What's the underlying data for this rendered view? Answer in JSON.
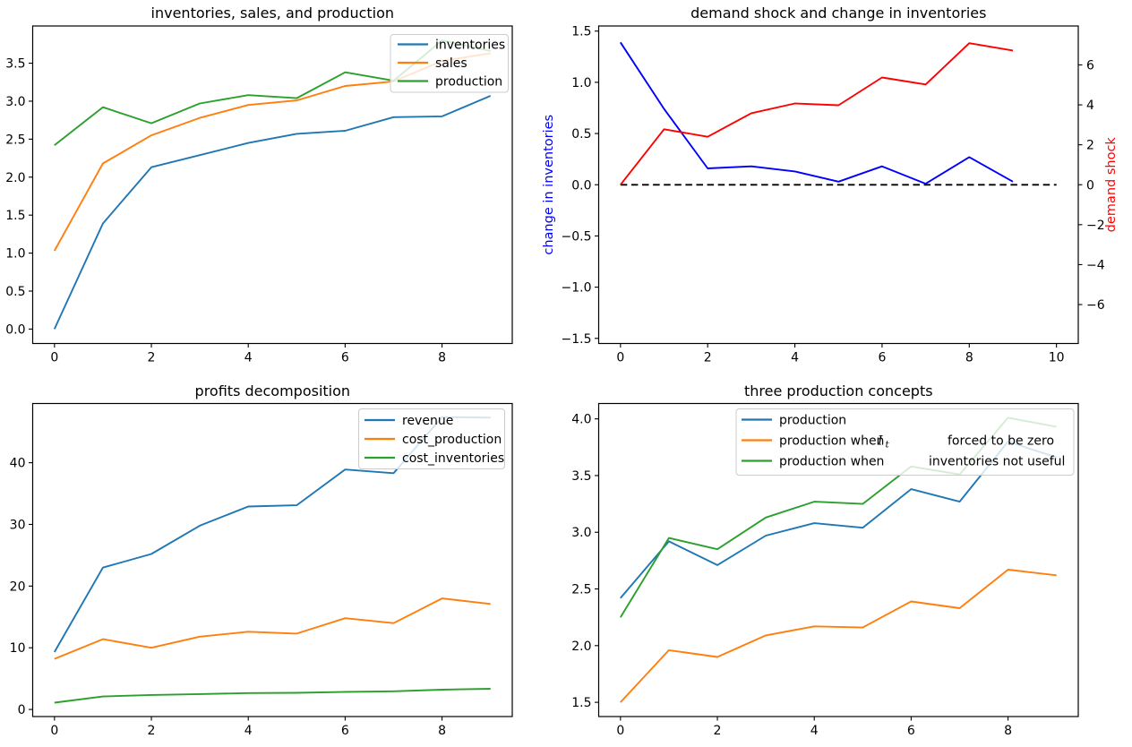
{
  "figure": {
    "background": "#ffffff"
  },
  "colors": {
    "mpl_blue": "#1f77b4",
    "mpl_orange": "#ff7f0e",
    "mpl_green": "#2ca02c",
    "pure_blue": "#0000ff",
    "pure_red": "#ff0000",
    "black": "#000000",
    "legend_border": "#cccccc"
  },
  "chart_data": [
    {
      "id": "inventories-sales-production",
      "type": "line",
      "title": "inventories, sales, and production",
      "x": [
        0,
        1,
        2,
        3,
        4,
        5,
        6,
        7,
        8,
        9
      ],
      "xlim": [
        -0.45,
        9.45
      ],
      "ylim": [
        -0.19,
        3.99
      ],
      "grid": false,
      "legend_position": "upper right",
      "xticks": {
        "values": [
          0,
          2,
          4,
          6,
          8
        ],
        "labels": [
          "0",
          "2",
          "4",
          "6",
          "8"
        ]
      },
      "yticks": {
        "values": [
          0,
          0.5,
          1,
          1.5,
          2,
          2.5,
          3,
          3.5
        ],
        "labels": [
          "0.0",
          "0.5",
          "1.0",
          "1.5",
          "2.0",
          "2.5",
          "3.0",
          "3.5"
        ]
      },
      "legend": [
        "inventories",
        "sales",
        "production"
      ],
      "series": [
        {
          "name": "inventories",
          "color": "#1f77b4",
          "values": [
            0.0,
            1.39,
            2.13,
            2.29,
            2.45,
            2.57,
            2.61,
            2.79,
            2.8,
            3.07
          ]
        },
        {
          "name": "sales",
          "color": "#ff7f0e",
          "values": [
            1.03,
            2.18,
            2.55,
            2.78,
            2.95,
            3.01,
            3.2,
            3.26,
            3.53,
            3.63
          ]
        },
        {
          "name": "production",
          "color": "#2ca02c",
          "values": [
            2.42,
            2.92,
            2.71,
            2.97,
            3.08,
            3.04,
            3.38,
            3.27,
            3.8,
            3.66
          ]
        }
      ]
    },
    {
      "id": "demand-shock-and-change-in-inventories",
      "type": "line",
      "title": "demand shock and change in inventories",
      "x": [
        0,
        1,
        2,
        3,
        4,
        5,
        6,
        7,
        8,
        9
      ],
      "xlim": [
        -0.5,
        10.5
      ],
      "ylim_left": [
        -1.55,
        1.55
      ],
      "ylim_right": [
        -7.95,
        7.95
      ],
      "grid": false,
      "ylabel_left": {
        "text": "change in inventories",
        "color": "#0000ff"
      },
      "ylabel_right": {
        "text": "demand shock",
        "color": "#ff0000"
      },
      "xticks": {
        "values": [
          0,
          2,
          4,
          6,
          8,
          10
        ],
        "labels": [
          "0",
          "2",
          "4",
          "6",
          "8",
          "10"
        ]
      },
      "yticks_left": {
        "values": [
          1.5,
          1.0,
          0.5,
          0.0,
          -0.5,
          -1.0,
          -1.5
        ],
        "labels": [
          "1.5",
          "1.0",
          "0.5",
          "0.0",
          "−0.5",
          "−1.0",
          "−1.5"
        ]
      },
      "yticks_right": {
        "values": [
          6,
          4,
          2,
          0,
          -2,
          -4,
          -6
        ],
        "labels": [
          "6",
          "4",
          "2",
          "0",
          "−2",
          "−4",
          "−6"
        ]
      },
      "series": [
        {
          "name": "zero line",
          "axis": "left",
          "color": "#000000",
          "dashed": true,
          "x": [
            0,
            10
          ],
          "values": [
            0,
            0
          ]
        },
        {
          "name": "change in inventories",
          "axis": "left",
          "color": "#0000ff",
          "values": [
            1.39,
            0.74,
            0.16,
            0.18,
            0.13,
            0.03,
            0.18,
            0.01,
            0.27,
            0.03
          ]
        },
        {
          "name": "demand shock",
          "axis": "right",
          "color": "#ff0000",
          "values": [
            0.0,
            2.78,
            2.4,
            3.58,
            4.07,
            3.98,
            5.37,
            5.02,
            7.09,
            6.72
          ]
        }
      ]
    },
    {
      "id": "profits-decomposition",
      "type": "line",
      "title": "profits decomposition",
      "x": [
        0,
        1,
        2,
        3,
        4,
        5,
        6,
        7,
        8,
        9
      ],
      "xlim": [
        -0.45,
        9.45
      ],
      "ylim": [
        -1.15,
        49.6
      ],
      "grid": false,
      "legend_position": "upper right",
      "xticks": {
        "values": [
          0,
          2,
          4,
          6,
          8
        ],
        "labels": [
          "0",
          "2",
          "4",
          "6",
          "8"
        ]
      },
      "yticks": {
        "values": [
          0,
          10,
          20,
          30,
          40
        ],
        "labels": [
          "0",
          "10",
          "20",
          "30",
          "40"
        ]
      },
      "legend": [
        "revenue",
        "cost_production",
        "cost_inventories"
      ],
      "series": [
        {
          "name": "revenue",
          "color": "#1f77b4",
          "values": [
            9.3,
            23.0,
            25.2,
            29.8,
            32.9,
            33.1,
            38.9,
            38.3,
            47.4,
            47.3
          ]
        },
        {
          "name": "cost_production",
          "color": "#ff7f0e",
          "values": [
            8.2,
            11.4,
            10.0,
            11.8,
            12.6,
            12.3,
            14.8,
            14.0,
            18.0,
            17.1
          ]
        },
        {
          "name": "cost_inventories",
          "color": "#2ca02c",
          "values": [
            1.1,
            2.1,
            2.35,
            2.5,
            2.65,
            2.7,
            2.85,
            2.95,
            3.2,
            3.35
          ]
        }
      ]
    },
    {
      "id": "three-production-concepts",
      "type": "line",
      "title": "three production concepts",
      "x": [
        0,
        1,
        2,
        3,
        4,
        5,
        6,
        7,
        8,
        9
      ],
      "xlim": [
        -0.45,
        9.45
      ],
      "ylim": [
        1.3745,
        4.1355
      ],
      "grid": false,
      "legend_position": "upper right",
      "xticks": {
        "values": [
          0,
          2,
          4,
          6,
          8
        ],
        "labels": [
          "0",
          "2",
          "4",
          "6",
          "8"
        ]
      },
      "yticks": {
        "values": [
          1.5,
          2.0,
          2.5,
          3.0,
          3.5,
          4.0
        ],
        "labels": [
          "1.5",
          "2.0",
          "2.5",
          "3.0",
          "3.5",
          "4.0"
        ]
      },
      "legend_rows": [
        [
          {
            "text": "production"
          }
        ],
        [
          {
            "text": "production when"
          },
          {
            "text": "I",
            "style": "math-italic"
          },
          {
            "text": "t",
            "style": "subscript"
          },
          {
            "text": "forced to be zero",
            "slot": "right"
          }
        ],
        [
          {
            "text": "production when"
          },
          {
            "text": "inventories not useful",
            "slot": "right"
          }
        ]
      ],
      "series": [
        {
          "name": "production",
          "color": "#1f77b4",
          "values": [
            2.42,
            2.92,
            2.71,
            2.97,
            3.08,
            3.04,
            3.38,
            3.27,
            3.8,
            3.66
          ]
        },
        {
          "name": "production when It forced to be zero",
          "color": "#ff7f0e",
          "values": [
            1.5,
            1.96,
            1.9,
            2.09,
            2.17,
            2.16,
            2.39,
            2.33,
            2.67,
            2.62
          ]
        },
        {
          "name": "production when inventories not useful",
          "color": "#2ca02c",
          "values": [
            2.25,
            2.95,
            2.85,
            3.13,
            3.27,
            3.25,
            3.58,
            3.51,
            4.01,
            3.93
          ]
        }
      ]
    }
  ]
}
